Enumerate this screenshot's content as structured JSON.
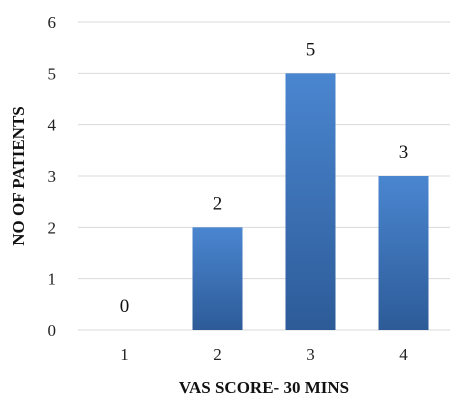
{
  "chart_data": {
    "type": "bar",
    "title": "",
    "xlabel": "VAS SCORE- 30 MINS",
    "ylabel": "NO OF PATIENTS",
    "categories": [
      "1",
      "2",
      "3",
      "4"
    ],
    "values": [
      0,
      2,
      5,
      3
    ],
    "data_labels": [
      "0",
      "2",
      "5",
      "3"
    ],
    "ylim": [
      0,
      6
    ],
    "yticks": [
      "0",
      "1",
      "2",
      "3",
      "4",
      "5",
      "6"
    ],
    "grid": true,
    "legend": "none",
    "colors": {
      "bar_top": "#4a86d0",
      "bar_bottom": "#2d5b98",
      "grid": "#d9d9d9"
    }
  }
}
